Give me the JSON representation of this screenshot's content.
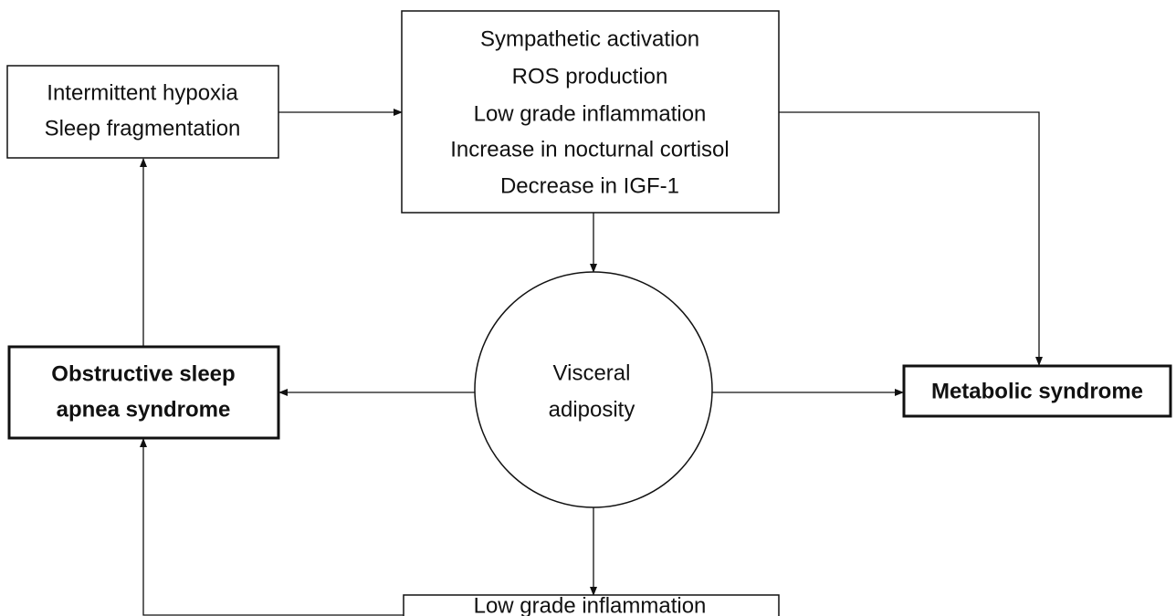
{
  "nodes": [
    {
      "lines": [
        "Intermittent  hypoxia",
        "Sleep fragmentation"
      ]
    },
    {
      "lines": [
        "Sympathetic activation",
        "ROS production",
        "Low grade inflammation",
        "Increase in nocturnal cortisol",
        "Decrease in IGF-1"
      ]
    },
    {
      "lines": [
        "Visceral",
        "adiposity"
      ]
    },
    {
      "lines": [
        "Obstructive sleep",
        "apnea syndrome"
      ]
    },
    {
      "lines": [
        "Metabolic syndrome"
      ]
    },
    {
      "lines": [
        "Low grade inflammation"
      ]
    }
  ]
}
